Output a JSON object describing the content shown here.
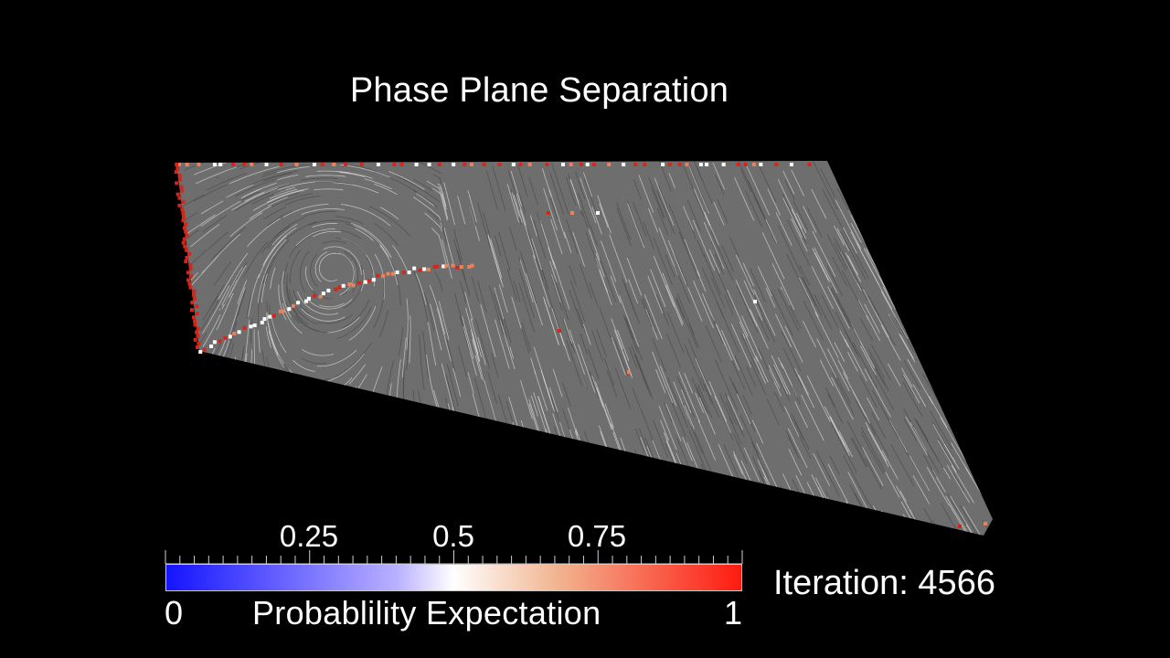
{
  "title": "Phase Plane Separation",
  "colorbar": {
    "title": "Probablility Expectation",
    "min_label": "0",
    "max_label": "1",
    "ticks": [
      {
        "value": 0.25,
        "label": "0.25"
      },
      {
        "value": 0.5,
        "label": "0.5"
      },
      {
        "value": 0.75,
        "label": "0.75"
      }
    ],
    "colors": {
      "low": "#1414ff",
      "mid": "#ffffff",
      "high": "#ff1a10"
    }
  },
  "iteration": {
    "label": "Iteration:",
    "value": "4566",
    "text": "Iteration: 4566"
  },
  "colors": {
    "background": "#000000",
    "field": "#7a7a7a",
    "streamline": "#d8d8d8",
    "marker_red": "#d6261c",
    "marker_orange": "#f0805a",
    "marker_white": "#ffffff"
  }
}
